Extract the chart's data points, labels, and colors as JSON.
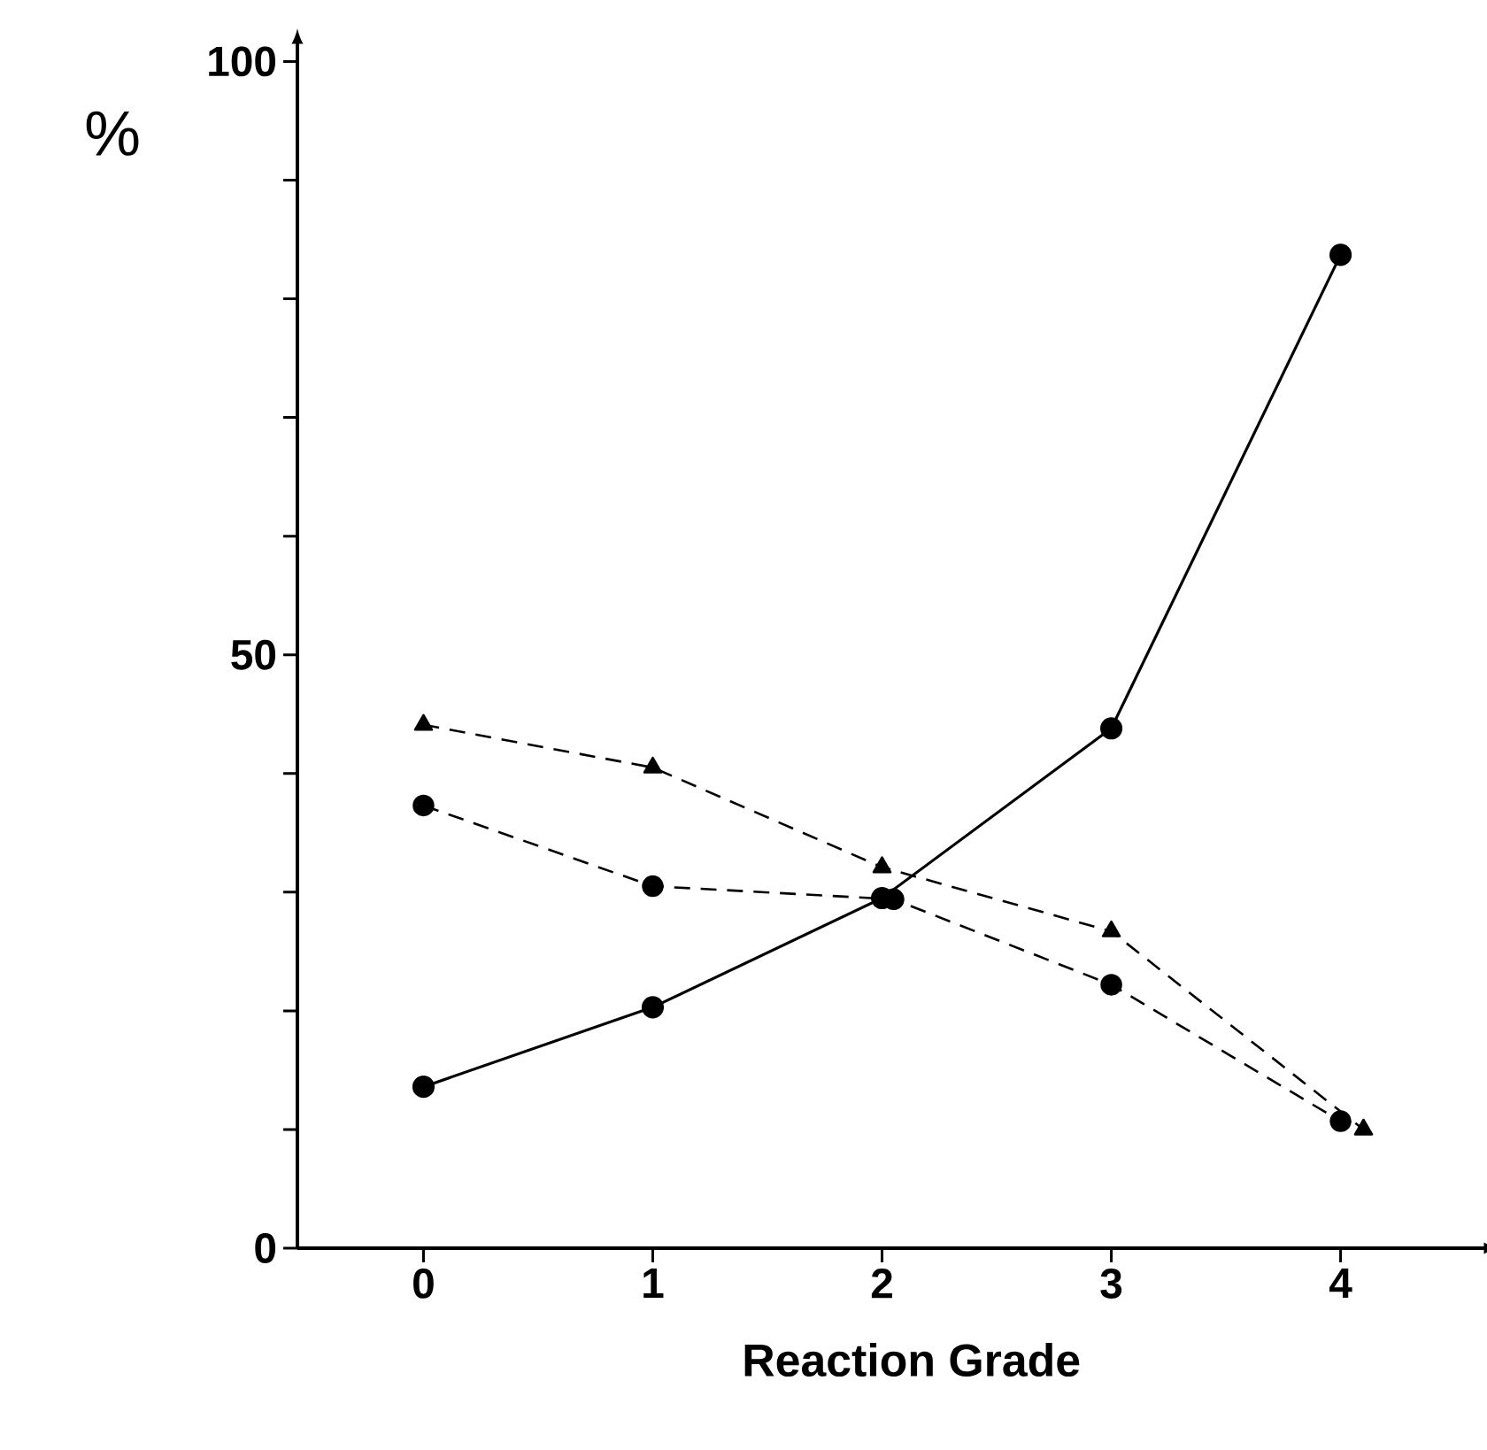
{
  "chart_data": {
    "type": "line",
    "xlabel": "Reaction Grade",
    "ylabel": "%",
    "x": [
      0,
      1,
      2,
      3,
      4
    ],
    "series": [
      {
        "color": "#000000",
        "marker": "circle",
        "line_style": "solid",
        "values": [
          13.6,
          20.3,
          29.5,
          43.8,
          83.7
        ]
      },
      {
        "color": "#000000",
        "marker": "triangle",
        "line_style": "dashed",
        "x": [
          0,
          1,
          2,
          3,
          4.1
        ],
        "values": [
          44.1,
          40.5,
          32.1,
          26.7,
          10.0
        ]
      },
      {
        "color": "#000000",
        "marker": "circle",
        "line_style": "dashed",
        "x": [
          0,
          1,
          2.05,
          3,
          4
        ],
        "values": [
          37.3,
          30.5,
          29.4,
          22.2,
          10.7
        ]
      }
    ],
    "xlim": [
      -0.55,
      4.6
    ],
    "ylim": [
      0,
      101
    ],
    "xticks": [
      0,
      1,
      2,
      3,
      4
    ],
    "yticks": [
      0,
      {
        "value": 10,
        "label": null
      },
      {
        "value": 20,
        "label": null
      },
      {
        "value": 30,
        "label": null
      },
      {
        "value": 40,
        "label": null
      },
      50,
      {
        "value": 60,
        "label": null
      },
      {
        "value": 70,
        "label": null
      },
      {
        "value": 80,
        "label": null
      },
      {
        "value": 90,
        "label": null
      },
      100
    ],
    "grid": false
  }
}
